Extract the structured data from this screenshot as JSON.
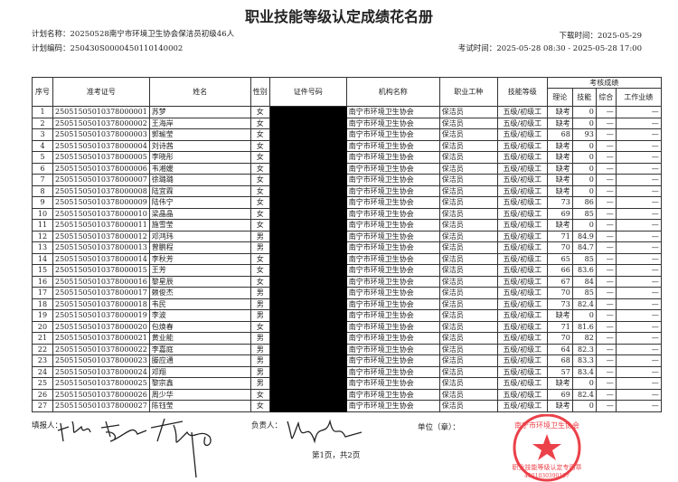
{
  "title": "职业技能等级认定成绩花名册",
  "plan_name_label": "计划名称：",
  "plan_name": "20250528南宁市环境卫生协会保洁员初级46人",
  "plan_code_label": "计划编码：",
  "plan_code": "250430S0000450110140002",
  "download_label": "下载时间：",
  "download_time": "2025-05-29",
  "exam_label": "考试时间：",
  "exam_time": "2025-05-28 08:30 - 2025-05-28 17:00",
  "headers": {
    "no": "序号",
    "ticket": "准考证号",
    "name": "姓名",
    "gender": "性别",
    "id": "证件号码",
    "org": "机构名称",
    "job": "职业工种",
    "level": "技能等级",
    "scores": "考核成绩",
    "theory": "理论",
    "skill": "技能",
    "overall": "综合",
    "work": "工作业绩"
  },
  "rows": [
    [
      "1",
      "250515050103780000​01",
      "苏梦",
      "女",
      "缺考",
      "0"
    ],
    [
      "2",
      "25051505010378000002",
      "王海岸",
      "女",
      "缺考",
      "0"
    ],
    [
      "3",
      "25051505010378000003",
      "郭瑜莹",
      "女",
      "68",
      "93"
    ],
    [
      "4",
      "25051505010378000004",
      "刘诗茜",
      "女",
      "缺考",
      "0"
    ],
    [
      "5",
      "25051505010378000005",
      "李晓彤",
      "女",
      "缺考",
      "0"
    ],
    [
      "6",
      "25051505010378000006",
      "韦湘媛",
      "女",
      "缺考",
      "0"
    ],
    [
      "7",
      "25051505010378000007",
      "徐璐璐",
      "女",
      "缺考",
      "0"
    ],
    [
      "8",
      "25051505010378000008",
      "陆宜霖",
      "女",
      "缺考",
      "0"
    ],
    [
      "9",
      "25051505010378000009",
      "陆伟宁",
      "女",
      "73",
      "86"
    ],
    [
      "10",
      "25051505010378000010",
      "梁晶晶",
      "女",
      "69",
      "85"
    ],
    [
      "11",
      "25051505010378000011",
      "施雪莹",
      "女",
      "缺考",
      "0"
    ],
    [
      "12",
      "25051505010378000012",
      "邓鸿玮",
      "男",
      "71",
      "84.9"
    ],
    [
      "13",
      "25051505010378000013",
      "曾鹏程",
      "男",
      "70",
      "84.7"
    ],
    [
      "14",
      "25051505010378000014",
      "李秋芳",
      "女",
      "65",
      "85"
    ],
    [
      "15",
      "25051505010378000015",
      "王芳",
      "女",
      "66",
      "83.6"
    ],
    [
      "16",
      "25051505010378000016",
      "黎星辰",
      "女",
      "67",
      "84"
    ],
    [
      "17",
      "25051505010378000017",
      "赖俊杰",
      "男",
      "70",
      "85"
    ],
    [
      "18",
      "25051505010378000018",
      "韦民",
      "男",
      "73",
      "82.4"
    ],
    [
      "19",
      "25051505010378000019",
      "李波",
      "男",
      "缺考",
      "0"
    ],
    [
      "20",
      "25051505010378000020",
      "包焕春",
      "女",
      "71",
      "81.6"
    ],
    [
      "21",
      "25051505010378000021",
      "黄业能",
      "男",
      "70",
      "82"
    ],
    [
      "22",
      "25051505010378000022",
      "李嘉庭",
      "男",
      "64",
      "82.3"
    ],
    [
      "23",
      "25051505010378000023",
      "滕应通",
      "男",
      "68",
      "83.3"
    ],
    [
      "24",
      "25051505010378000024",
      "邓翔",
      "男",
      "57",
      "83.4"
    ],
    [
      "25",
      "25051505010378000025",
      "黎宗鑫",
      "男",
      "缺考",
      "0"
    ],
    [
      "26",
      "25051505010378000026",
      "周少华",
      "女",
      "69",
      "82.4"
    ],
    [
      "27",
      "25051505010378000027",
      "陈钰莹",
      "女",
      "缺考",
      "0"
    ]
  ],
  "org_name": "南宁市环境卫生协会",
  "job_name": "保洁员",
  "level_name": "五级/初级工",
  "dash": "—",
  "footer": {
    "filler_label": "填报人：",
    "manager_label": "负责人：",
    "unit_label": "单位（章）：",
    "page": "第1页，共2页"
  },
  "stamp": {
    "text": "职业技能等级认定专用章",
    "org": "南宁市环境卫生协会",
    "code": "4501030390197",
    "color": "#e8202a"
  }
}
